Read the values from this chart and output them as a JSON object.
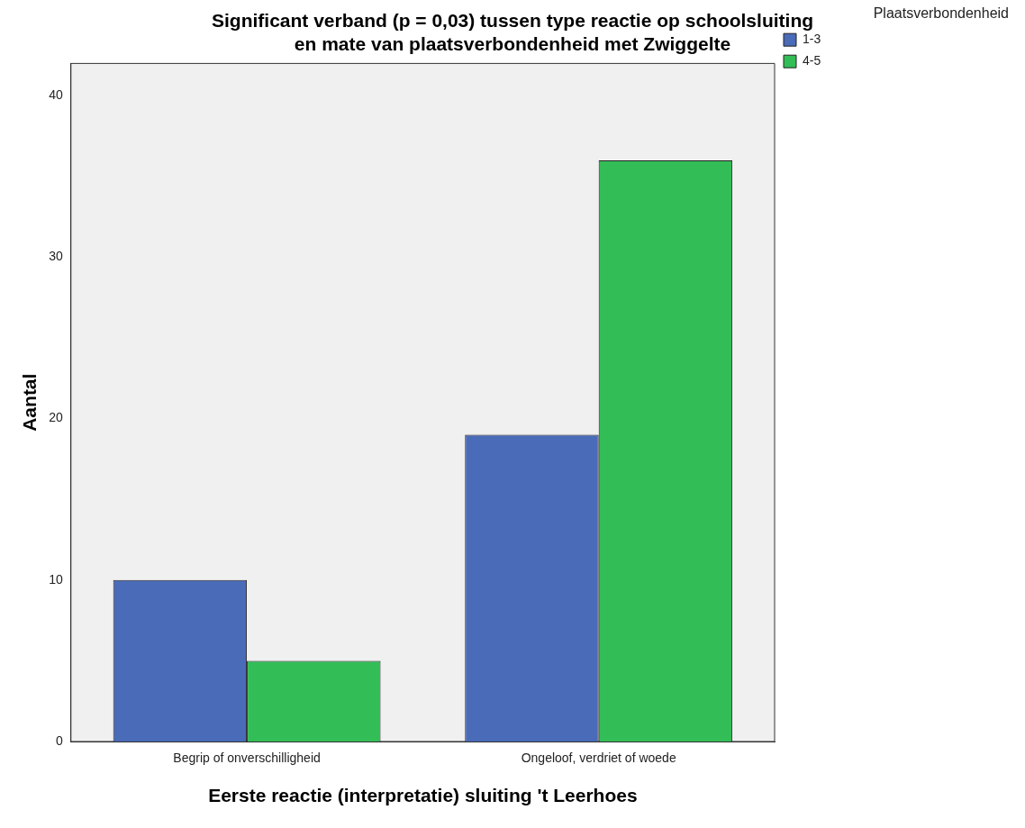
{
  "chart_data": {
    "type": "bar",
    "title": "Significant verband (p = 0,03) tussen type reactie op schoolsluiting\nen mate van plaatsverbondenheid met Zwiggelte",
    "xlabel": "Eerste reactie (interpretatie) sluiting 't Leerhoes",
    "ylabel": "Aantal",
    "categories": [
      "Begrip of onverschilligheid",
      "Ongeloof, verdriet of woede"
    ],
    "series": [
      {
        "name": "1-3",
        "color": "#4a6bb8",
        "values": [
          10,
          19
        ]
      },
      {
        "name": "4-5",
        "color": "#33bd57",
        "values": [
          5,
          36
        ]
      }
    ],
    "legend_title": "Plaatsverbondenheid",
    "legend": "top right",
    "ylim": [
      0,
      42
    ],
    "yticks": [
      0,
      10,
      20,
      30,
      40
    ],
    "grid": false
  }
}
